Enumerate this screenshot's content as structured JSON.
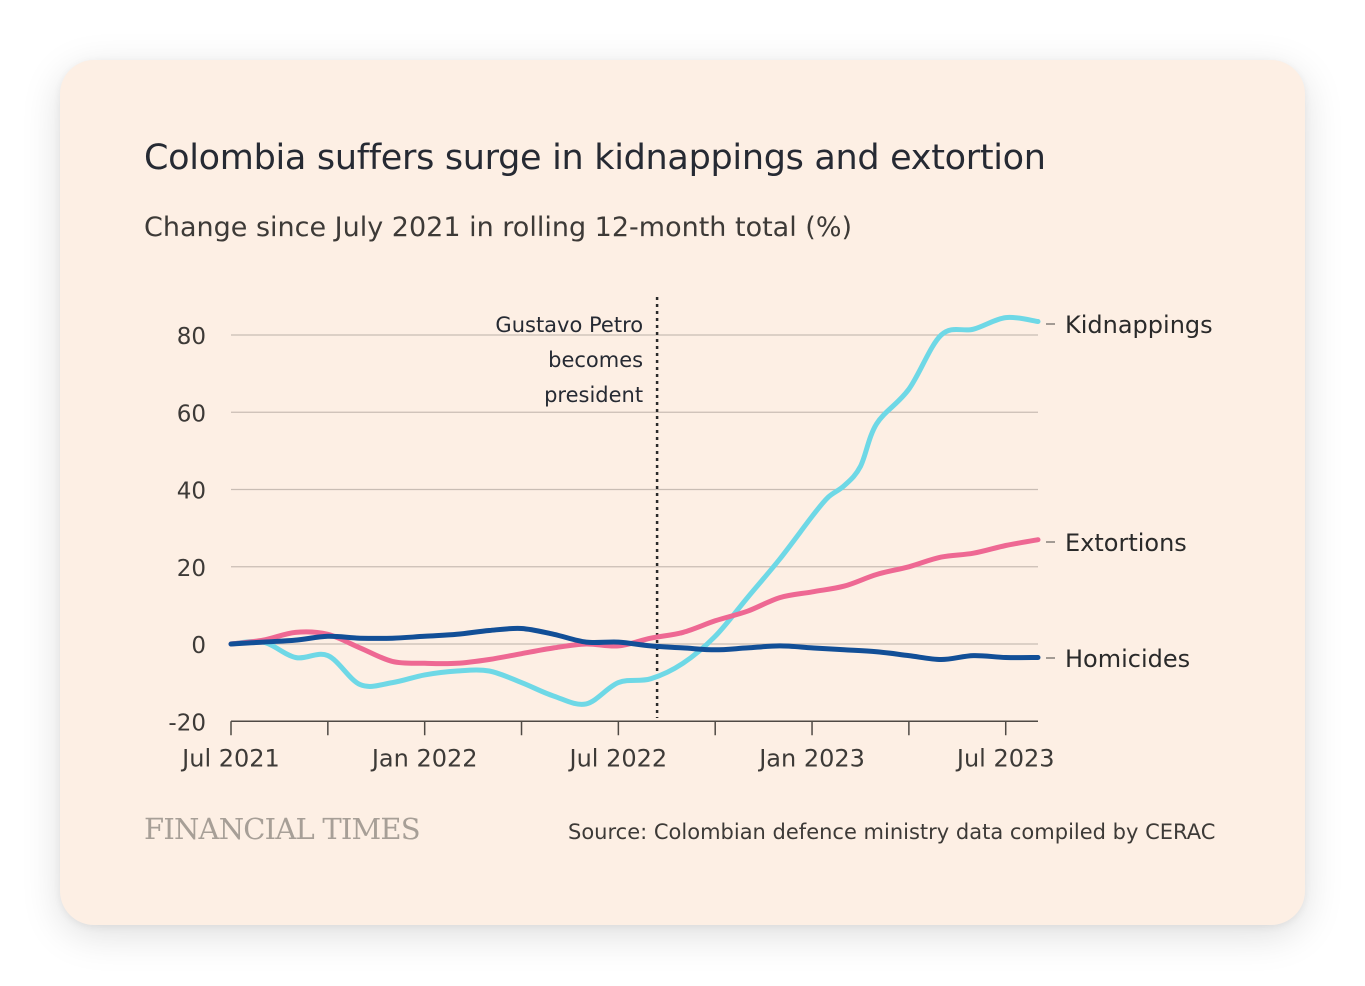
{
  "header": {
    "title": "Colombia suffers surge in kidnappings and extortion",
    "subtitle": "Change since July 2021 in rolling 12-month total (%)"
  },
  "footer": {
    "brand": "FINANCIAL TIMES",
    "source": "Source: Colombian defence ministry data compiled by CERAC"
  },
  "colors": {
    "kidnappings": "#6ed8e6",
    "extortions": "#ee6893",
    "homicides": "#124f97",
    "grid": "#c9bdb4",
    "axis": "#4f4a45",
    "text": "#3d3a37"
  },
  "chart_data": {
    "type": "line",
    "title": "Colombia suffers surge in kidnappings and extortion",
    "subtitle": "Change since July 2021 in rolling 12-month total (%)",
    "xlabel": "",
    "ylabel": "",
    "ylim": [
      -20,
      90
    ],
    "yticks": [
      -20,
      0,
      20,
      40,
      60,
      80
    ],
    "xlim": [
      0,
      25
    ],
    "xticks": [
      {
        "value": 0,
        "label": "Jul 2021"
      },
      {
        "value": 3,
        "label": ""
      },
      {
        "value": 6,
        "label": "Jan 2022"
      },
      {
        "value": 9,
        "label": ""
      },
      {
        "value": 12,
        "label": "Jul 2022"
      },
      {
        "value": 15,
        "label": ""
      },
      {
        "value": 18,
        "label": "Jan 2023"
      },
      {
        "value": 21,
        "label": ""
      },
      {
        "value": 24,
        "label": "Jul 2023"
      }
    ],
    "grid": true,
    "x_unit": "months since Jul 2021",
    "series": [
      {
        "name": "Kidnappings",
        "key": "kidnappings",
        "points": [
          [
            0,
            0
          ],
          [
            1,
            0.5
          ],
          [
            2,
            -3.5
          ],
          [
            3,
            -3
          ],
          [
            4,
            -10.5
          ],
          [
            5,
            -10
          ],
          [
            6,
            -8
          ],
          [
            7,
            -7
          ],
          [
            8,
            -7
          ],
          [
            9,
            -10
          ],
          [
            10,
            -13.5
          ],
          [
            11,
            -15.5
          ],
          [
            12,
            -10
          ],
          [
            13,
            -9
          ],
          [
            14,
            -5
          ],
          [
            15,
            2
          ],
          [
            16,
            12
          ],
          [
            17,
            22
          ],
          [
            18,
            33
          ],
          [
            18.5,
            38
          ],
          [
            19,
            41
          ],
          [
            19.5,
            46
          ],
          [
            20,
            57
          ],
          [
            21,
            66
          ],
          [
            22,
            80
          ],
          [
            23,
            81.5
          ],
          [
            24,
            84.5
          ],
          [
            25,
            83.5
          ]
        ]
      },
      {
        "name": "Extortions",
        "key": "extortions",
        "points": [
          [
            0,
            0
          ],
          [
            1,
            1
          ],
          [
            2,
            3
          ],
          [
            3,
            2.5
          ],
          [
            4,
            -1
          ],
          [
            5,
            -4.5
          ],
          [
            6,
            -5
          ],
          [
            7,
            -5
          ],
          [
            8,
            -4
          ],
          [
            9,
            -2.5
          ],
          [
            10,
            -1
          ],
          [
            11,
            0
          ],
          [
            12,
            -0.5
          ],
          [
            13,
            1.5
          ],
          [
            14,
            3
          ],
          [
            15,
            6
          ],
          [
            16,
            8.5
          ],
          [
            17,
            12
          ],
          [
            18,
            13.5
          ],
          [
            19,
            15
          ],
          [
            20,
            18
          ],
          [
            21,
            20
          ],
          [
            22,
            22.5
          ],
          [
            23,
            23.5
          ],
          [
            24,
            25.5
          ],
          [
            25,
            27
          ]
        ]
      },
      {
        "name": "Homicides",
        "key": "homicides",
        "points": [
          [
            0,
            0
          ],
          [
            1,
            0.5
          ],
          [
            2,
            1
          ],
          [
            3,
            2
          ],
          [
            4,
            1.5
          ],
          [
            5,
            1.5
          ],
          [
            6,
            2
          ],
          [
            7,
            2.5
          ],
          [
            8,
            3.5
          ],
          [
            9,
            4
          ],
          [
            10,
            2.5
          ],
          [
            11,
            0.5
          ],
          [
            12,
            0.5
          ],
          [
            13,
            -0.5
          ],
          [
            14,
            -1
          ],
          [
            15,
            -1.5
          ],
          [
            16,
            -1
          ],
          [
            17,
            -0.5
          ],
          [
            18,
            -1
          ],
          [
            19,
            -1.5
          ],
          [
            20,
            -2
          ],
          [
            21,
            -3
          ],
          [
            22,
            -4
          ],
          [
            23,
            -3
          ],
          [
            24,
            -3.5
          ],
          [
            25,
            -3.5
          ]
        ]
      }
    ],
    "legend": [
      "Kidnappings",
      "Extortions",
      "Homicides"
    ],
    "annotations": [
      {
        "x": 13.2,
        "lines": [
          "Gustavo Petro",
          "becomes",
          "president"
        ]
      }
    ]
  }
}
